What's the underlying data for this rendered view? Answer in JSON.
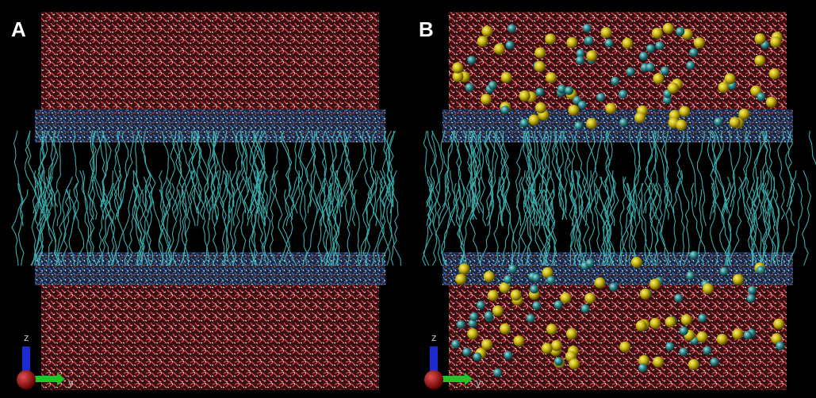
{
  "panels": [
    {
      "label": "A",
      "axes": {
        "z": "z",
        "y": "y"
      }
    },
    {
      "label": "B",
      "axes": {
        "z": "z",
        "y": "y"
      }
    }
  ]
}
